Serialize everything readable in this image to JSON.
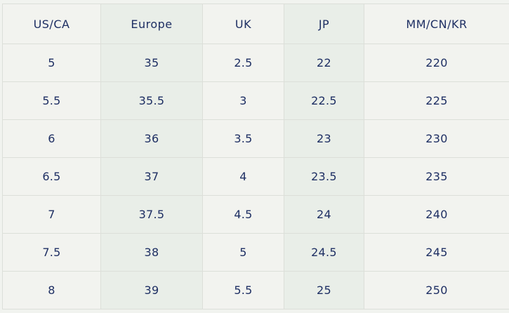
{
  "table": {
    "headers": [
      "US/CA",
      "Europe",
      "UK",
      "JP",
      "MM/CN/KR"
    ],
    "rows": [
      [
        "5",
        "35",
        "2.5",
        "22",
        "220"
      ],
      [
        "5.5",
        "35.5",
        "3",
        "22.5",
        "225"
      ],
      [
        "6",
        "36",
        "3.5",
        "23",
        "230"
      ],
      [
        "6.5",
        "37",
        "4",
        "23.5",
        "235"
      ],
      [
        "7",
        "37.5",
        "4.5",
        "24",
        "240"
      ],
      [
        "7.5",
        "38",
        "5",
        "24.5",
        "245"
      ],
      [
        "8",
        "39",
        "5.5",
        "25",
        "250"
      ]
    ]
  },
  "colors": {
    "text": "#1e2f63",
    "background": "#f1f3ef",
    "alt_column": "#e9eee8",
    "grid": "#dcdfd9"
  }
}
